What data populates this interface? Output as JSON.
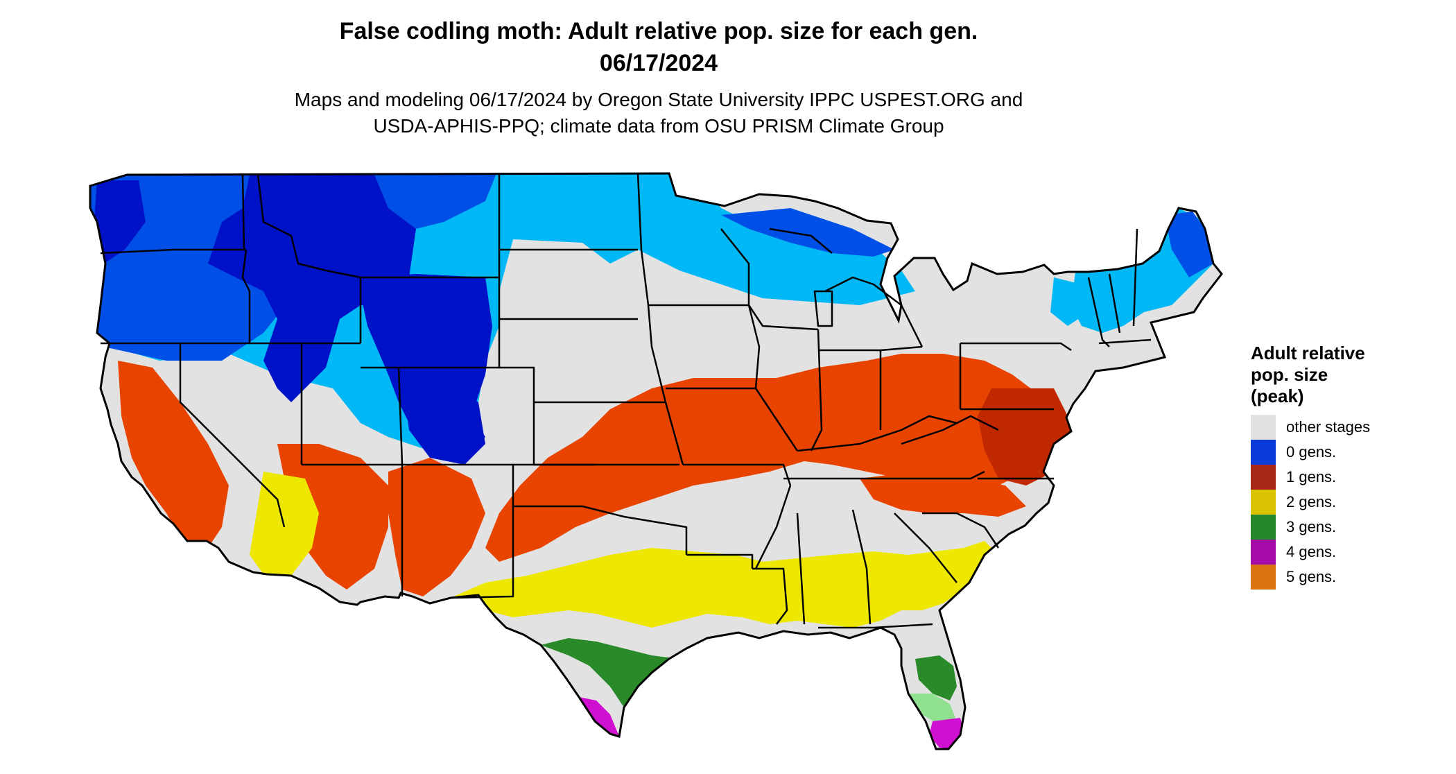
{
  "title_line1": "False codling moth: Adult relative pop. size for each gen.",
  "title_line2": "06/17/2024",
  "subtitle_line1": "Maps and modeling 06/17/2024 by Oregon State University IPPC USPEST.ORG and",
  "subtitle_line2": "USDA-APHIS-PPQ; climate data from OSU PRISM Climate Group",
  "legend": {
    "title": "Adult relative\npop. size\n(peak)",
    "items": [
      {
        "label": "other stages",
        "color": "#e2e2e2"
      },
      {
        "label": "0 gens.",
        "color": "#0a3ad8"
      },
      {
        "label": "1 gens.",
        "color": "#a82616"
      },
      {
        "label": "2 gens.",
        "color": "#d9c300"
      },
      {
        "label": "3 gens.",
        "color": "#25882a"
      },
      {
        "label": "4 gens.",
        "color": "#a80ca8"
      },
      {
        "label": "5 gens.",
        "color": "#d9740f"
      }
    ]
  },
  "map_colors": {
    "land": "#e2e2e2",
    "gen0_dark": "#0012c8",
    "gen0_mid": "#0050e8",
    "gen0_light": "#00b8f5",
    "gen1": "#e84400",
    "gen1_dark": "#c02800",
    "gen2": "#eee800",
    "gen3": "#2a8a2a",
    "gen3_light": "#8fe08f",
    "gen4": "#d010d0",
    "border": "#000000"
  }
}
